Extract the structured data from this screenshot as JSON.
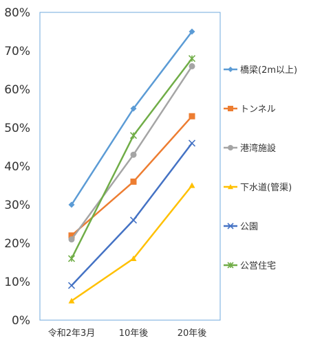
{
  "chart_data": {
    "type": "line",
    "categories": [
      "令和2年3月",
      "10年後",
      "20年後"
    ],
    "ylim": [
      0,
      80
    ],
    "y_ticks": [
      "0%",
      "10%",
      "20%",
      "30%",
      "40%",
      "50%",
      "60%",
      "70%",
      "80%"
    ],
    "y_tick_values": [
      0,
      10,
      20,
      30,
      40,
      50,
      60,
      70,
      80
    ],
    "y_unit": "percent",
    "grid": false,
    "legend_position": "right",
    "series": [
      {
        "name": "橋梁(2m以上)",
        "values": [
          30,
          55,
          75
        ],
        "color": "#5B9BD5",
        "marker": "diamond"
      },
      {
        "name": "トンネル",
        "values": [
          22,
          36,
          53
        ],
        "color": "#ED7D31",
        "marker": "square"
      },
      {
        "name": "港湾施設",
        "values": [
          21,
          43,
          66
        ],
        "color": "#A5A5A5",
        "marker": "circle"
      },
      {
        "name": "下水道(管渠)",
        "values": [
          5,
          16,
          35
        ],
        "color": "#FFC000",
        "marker": "triangle"
      },
      {
        "name": "公園",
        "values": [
          9,
          26,
          46
        ],
        "color": "#4472C4",
        "marker": "x"
      },
      {
        "name": "公営住宅",
        "values": [
          16,
          48,
          68
        ],
        "color": "#70AD47",
        "marker": "star"
      }
    ]
  }
}
